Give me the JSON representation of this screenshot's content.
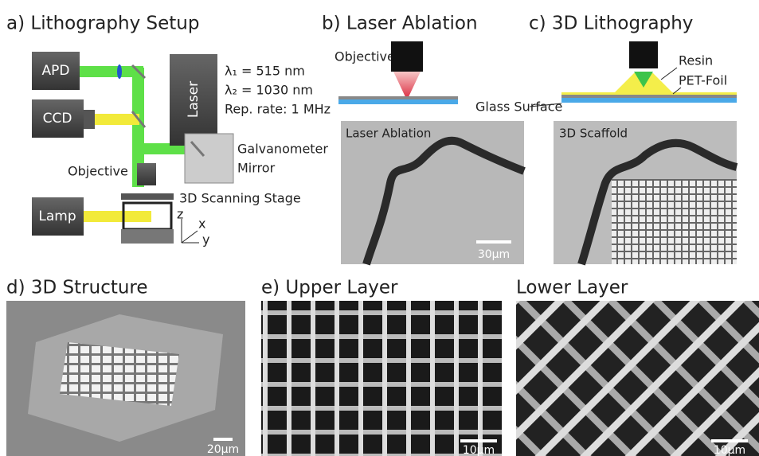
{
  "panel_a": {
    "title": "a) Lithography Setup",
    "apd": "APD",
    "ccd": "CCD",
    "lamp": "Lamp",
    "laser": "Laser",
    "wavelength_1": "λ₁ = 515 nm",
    "wavelength_2": "λ₂ = 1030 nm",
    "rep_rate": "Rep. rate: 1 MHz",
    "mirror": [
      "Galvanometer",
      "Mirror"
    ],
    "objective": "Objective",
    "stage": "3D Scanning Stage",
    "axes": [
      "z",
      "x",
      "y"
    ]
  },
  "panel_b": {
    "title": "b) Laser Ablation",
    "objective": "Objective",
    "surface": "Glass Surface",
    "image_label": "Laser Ablation",
    "scale_bar": "30µm"
  },
  "panel_c": {
    "title": "c) 3D Lithography",
    "resin": "Resin",
    "foil": "PET-Foil",
    "image_label": "3D Scaffold"
  },
  "panel_d": {
    "title": "d) 3D Structure",
    "scale_bar": "20µm"
  },
  "panel_e": {
    "title": "e) Upper Layer",
    "scale_bar": "10µm"
  },
  "panel_f": {
    "title": "Lower Layer",
    "scale_bar": "10µm"
  }
}
